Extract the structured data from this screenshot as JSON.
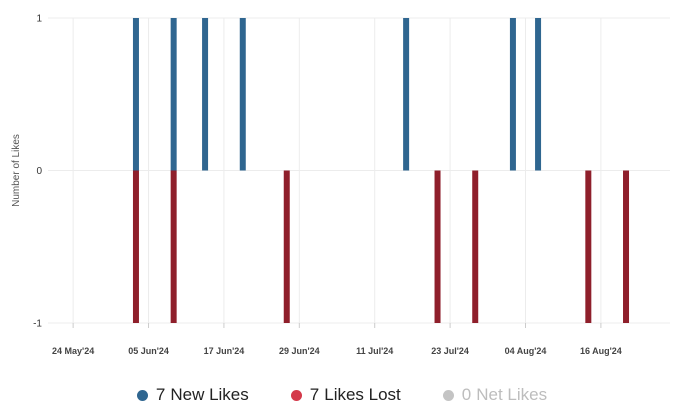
{
  "colors": {
    "new_likes": "#2f6690",
    "likes_lost": "#8f1f2b",
    "likes_lost_legend": "#d4394a",
    "net_likes": "#c4c4c4",
    "grid": "#ececec"
  },
  "legend": [
    {
      "count": "7",
      "label": "New Likes",
      "color": "#2f6690",
      "muted": false
    },
    {
      "count": "7",
      "label": "Likes Lost",
      "color": "#d4394a",
      "muted": false
    },
    {
      "count": "0",
      "label": "Net Likes",
      "color": "#c4c4c4",
      "muted": true
    }
  ],
  "chart_data": {
    "type": "bar",
    "title": "",
    "xlabel": "",
    "ylabel": "Number of Likes",
    "ylim": [
      -1,
      1
    ],
    "y_ticks": [
      "-1",
      "0",
      "1"
    ],
    "x_ticks": [
      "24 May'24",
      "05 Jun'24",
      "17 Jun'24",
      "29 Jun'24",
      "11 Jul'24",
      "23 Jul'24",
      "04 Aug'24",
      "16 Aug'24"
    ],
    "x_tick_dates": [
      "2024-05-24",
      "2024-06-05",
      "2024-06-17",
      "2024-06-29",
      "2024-07-11",
      "2024-07-23",
      "2024-08-04",
      "2024-08-16"
    ],
    "x_range": [
      "2024-05-20",
      "2024-08-27"
    ],
    "grid": true,
    "legend_position": "bottom",
    "stacked": true,
    "series": [
      {
        "name": "New Likes",
        "color": "#2f6690",
        "points": [
          {
            "x": "2024-06-03",
            "y": 1
          },
          {
            "x": "2024-06-09",
            "y": 1
          },
          {
            "x": "2024-06-14",
            "y": 1
          },
          {
            "x": "2024-06-20",
            "y": 1
          },
          {
            "x": "2024-07-16",
            "y": 1
          },
          {
            "x": "2024-08-02",
            "y": 1
          },
          {
            "x": "2024-08-06",
            "y": 1
          }
        ]
      },
      {
        "name": "Likes Lost",
        "color": "#8f1f2b",
        "points": [
          {
            "x": "2024-06-03",
            "y": -1
          },
          {
            "x": "2024-06-09",
            "y": -1
          },
          {
            "x": "2024-06-27",
            "y": -1
          },
          {
            "x": "2024-07-21",
            "y": -1
          },
          {
            "x": "2024-07-27",
            "y": -1
          },
          {
            "x": "2024-08-14",
            "y": -1
          },
          {
            "x": "2024-08-20",
            "y": -1
          }
        ]
      },
      {
        "name": "Net Likes",
        "color": "#c4c4c4",
        "points": []
      }
    ]
  }
}
